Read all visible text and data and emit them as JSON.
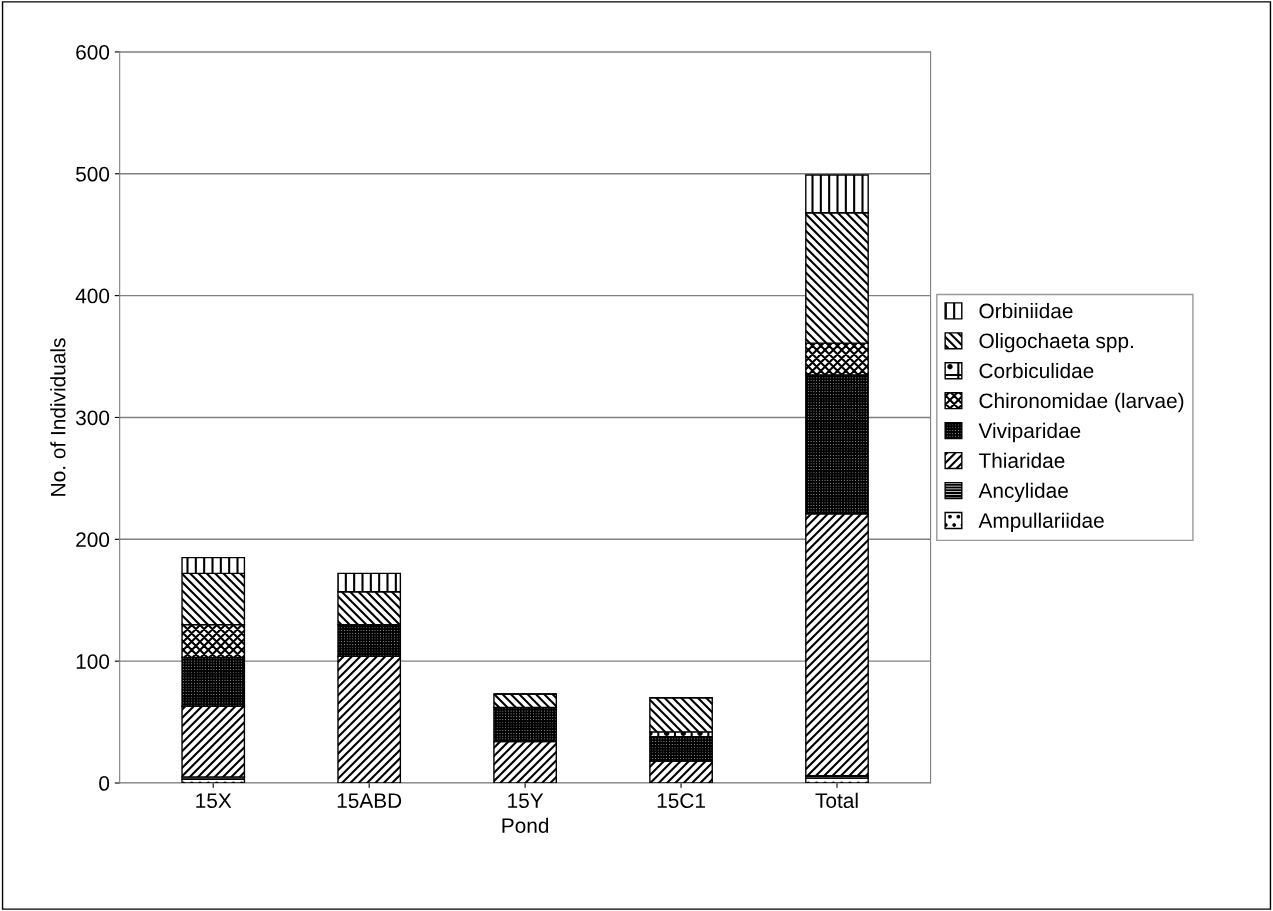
{
  "chart_data": {
    "type": "bar",
    "stacked": true,
    "xlabel": "Pond",
    "ylabel": "No. of Individuals",
    "categories": [
      "15X",
      "15ABD",
      "15Y",
      "15C1",
      "Total"
    ],
    "series": [
      {
        "name": "Ampullariidae",
        "color": "#000000",
        "values": [
          3,
          0,
          null,
          0,
          4
        ]
      },
      {
        "name": "Ancylidae",
        "color": "#000000",
        "values": [
          2,
          0,
          0,
          0,
          2
        ]
      },
      {
        "name": "Thiaridae",
        "color": "#000000",
        "values": [
          58,
          104,
          34,
          18,
          215
        ]
      },
      {
        "name": "Viviparidae",
        "color": "#000000",
        "values": [
          40,
          26,
          28,
          20,
          114
        ]
      },
      {
        "name": "Chironomidae (larvae)",
        "color": "#000000",
        "values": [
          27,
          0,
          0,
          0,
          26
        ]
      },
      {
        "name": "Corbiculidae",
        "color": "#000000",
        "values": [
          0,
          0,
          0,
          4,
          null
        ]
      },
      {
        "name": "Oligochaeta spp.",
        "color": "#000000",
        "values": [
          42,
          27,
          11,
          28,
          107
        ]
      },
      {
        "name": "Orbiniidae",
        "color": "#000000",
        "values": [
          13,
          15,
          0,
          0,
          31
        ]
      }
    ],
    "ylim": [
      0,
      600
    ],
    "yticks": [
      0,
      100,
      200,
      300,
      400,
      500,
      600
    ],
    "grid": "y",
    "legend": "right"
  }
}
